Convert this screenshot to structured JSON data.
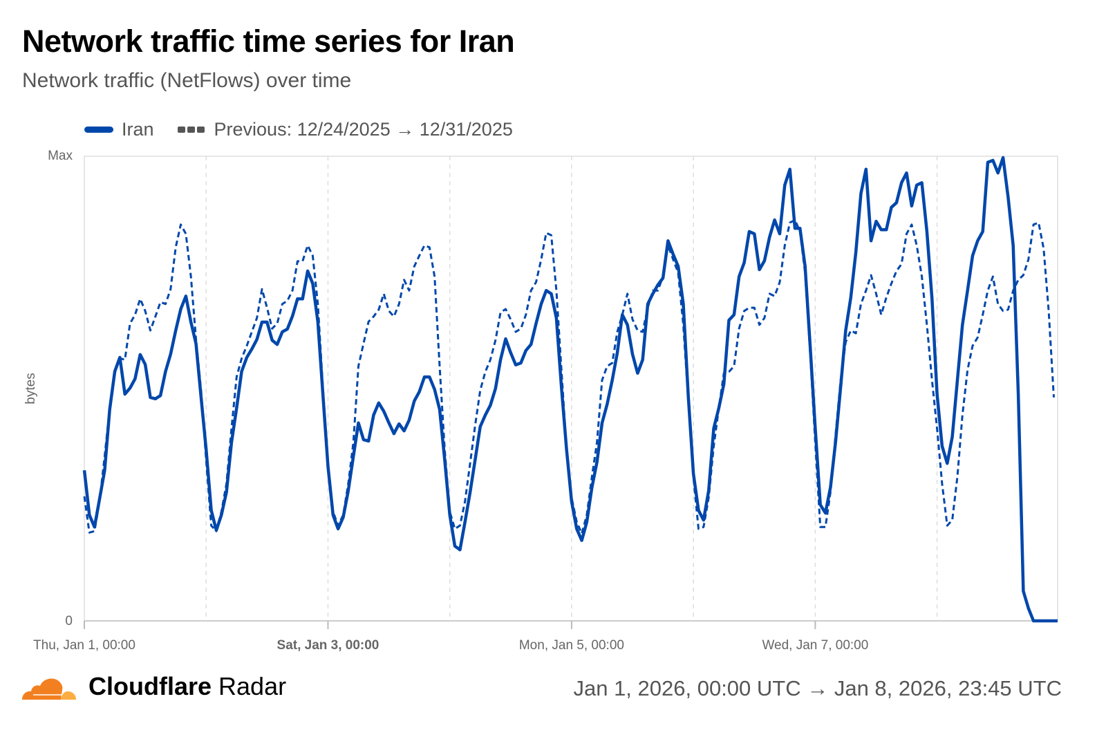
{
  "header": {
    "title": "Network traffic time series for Iran",
    "subtitle": "Network traffic (NetFlows) over time"
  },
  "footer": {
    "brand_bold": "Cloudflare",
    "brand_light": "Radar",
    "date_range": "Jan 1, 2026, 00:00 UTC → Jan 8, 2026, 23:45 UTC"
  },
  "colors": {
    "series": "#0047AB",
    "legend_previous": "#555555",
    "logo_orange": "#F38020",
    "logo_light": "#FBAD41"
  },
  "chart_data": {
    "type": "line",
    "title": "Network traffic time series for Iran",
    "ylabel": "bytes",
    "y_ticks": [
      "0",
      "Max"
    ],
    "ylim": [
      0,
      1
    ],
    "y_unit_note": "fraction of Max",
    "x_range": [
      "2026-01-01T00:00Z",
      "2026-01-08T23:45Z"
    ],
    "x_interval": "1h",
    "x_ticks": [
      "Thu, Jan 1, 00:00",
      "Sat, Jan 3, 00:00",
      "Mon, Jan 5, 00:00",
      "Wed, Jan 7, 00:00"
    ],
    "x_tick_bold_index": 1,
    "grid": "vertical dashed daily",
    "legend": "top-left",
    "series": [
      {
        "name": "Iran",
        "style": "solid",
        "values": [
          0.324,
          0.228,
          0.202,
          0.262,
          0.324,
          0.455,
          0.537,
          0.567,
          0.488,
          0.501,
          0.521,
          0.573,
          0.552,
          0.481,
          0.478,
          0.485,
          0.537,
          0.574,
          0.625,
          0.671,
          0.699,
          0.643,
          0.597,
          0.481,
          0.369,
          0.238,
          0.195,
          0.228,
          0.277,
          0.384,
          0.458,
          0.537,
          0.567,
          0.585,
          0.606,
          0.643,
          0.643,
          0.604,
          0.595,
          0.622,
          0.628,
          0.656,
          0.693,
          0.693,
          0.753,
          0.726,
          0.644,
          0.488,
          0.332,
          0.228,
          0.198,
          0.223,
          0.28,
          0.354,
          0.426,
          0.39,
          0.387,
          0.443,
          0.469,
          0.451,
          0.426,
          0.403,
          0.424,
          0.409,
          0.432,
          0.473,
          0.493,
          0.525,
          0.525,
          0.498,
          0.455,
          0.347,
          0.228,
          0.161,
          0.153,
          0.213,
          0.277,
          0.347,
          0.418,
          0.443,
          0.464,
          0.5,
          0.562,
          0.607,
          0.577,
          0.551,
          0.555,
          0.582,
          0.595,
          0.64,
          0.682,
          0.711,
          0.704,
          0.652,
          0.503,
          0.369,
          0.257,
          0.198,
          0.173,
          0.213,
          0.287,
          0.342,
          0.426,
          0.466,
          0.518,
          0.577,
          0.659,
          0.637,
          0.574,
          0.533,
          0.562,
          0.682,
          0.704,
          0.723,
          0.738,
          0.818,
          0.789,
          0.763,
          0.682,
          0.481,
          0.317,
          0.238,
          0.217,
          0.28,
          0.414,
          0.458,
          0.51,
          0.647,
          0.659,
          0.741,
          0.771,
          0.838,
          0.833,
          0.756,
          0.775,
          0.826,
          0.863,
          0.833,
          0.938,
          0.972,
          0.845,
          0.845,
          0.763,
          0.592,
          0.414,
          0.25,
          0.232,
          0.287,
          0.384,
          0.503,
          0.625,
          0.696,
          0.793,
          0.92,
          0.972,
          0.818,
          0.86,
          0.842,
          0.842,
          0.89,
          0.9,
          0.943,
          0.964,
          0.893,
          0.938,
          0.943,
          0.838,
          0.693,
          0.488,
          0.376,
          0.339,
          0.396,
          0.518,
          0.637,
          0.711,
          0.786,
          0.818,
          0.838,
          0.987,
          0.991,
          0.964,
          0.997,
          0.912,
          0.808,
          0.488,
          0.064,
          0.027,
          0,
          0,
          0,
          0,
          0
        ]
      },
      {
        "name": "Previous: 12/24/2025 → 12/31/2025",
        "style": "dashed",
        "values": [
          0.268,
          0.19,
          0.193,
          0.257,
          0.354,
          0.458,
          0.533,
          0.565,
          0.562,
          0.64,
          0.659,
          0.693,
          0.667,
          0.625,
          0.655,
          0.686,
          0.682,
          0.714,
          0.804,
          0.853,
          0.833,
          0.741,
          0.607,
          0.496,
          0.347,
          0.205,
          0.193,
          0.235,
          0.295,
          0.414,
          0.525,
          0.565,
          0.592,
          0.622,
          0.652,
          0.714,
          0.674,
          0.629,
          0.64,
          0.682,
          0.689,
          0.711,
          0.774,
          0.774,
          0.808,
          0.786,
          0.682,
          0.503,
          0.339,
          0.235,
          0.205,
          0.228,
          0.295,
          0.384,
          0.548,
          0.597,
          0.644,
          0.655,
          0.67,
          0.704,
          0.667,
          0.655,
          0.682,
          0.734,
          0.711,
          0.763,
          0.786,
          0.808,
          0.804,
          0.741,
          0.548,
          0.369,
          0.235,
          0.198,
          0.205,
          0.257,
          0.339,
          0.421,
          0.496,
          0.536,
          0.562,
          0.604,
          0.664,
          0.671,
          0.649,
          0.622,
          0.629,
          0.659,
          0.711,
          0.729,
          0.778,
          0.835,
          0.83,
          0.711,
          0.54,
          0.369,
          0.265,
          0.213,
          0.188,
          0.228,
          0.31,
          0.384,
          0.518,
          0.548,
          0.555,
          0.622,
          0.659,
          0.704,
          0.649,
          0.625,
          0.622,
          0.674,
          0.711,
          0.711,
          0.741,
          0.808,
          0.778,
          0.749,
          0.637,
          0.473,
          0.31,
          0.198,
          0.202,
          0.265,
          0.376,
          0.458,
          0.533,
          0.536,
          0.548,
          0.629,
          0.667,
          0.674,
          0.674,
          0.637,
          0.652,
          0.704,
          0.699,
          0.729,
          0.808,
          0.857,
          0.863,
          0.838,
          0.749,
          0.577,
          0.384,
          0.202,
          0.202,
          0.277,
          0.399,
          0.518,
          0.6,
          0.625,
          0.619,
          0.682,
          0.711,
          0.744,
          0.704,
          0.659,
          0.696,
          0.726,
          0.753,
          0.768,
          0.833,
          0.853,
          0.808,
          0.741,
          0.637,
          0.518,
          0.414,
          0.295,
          0.205,
          0.217,
          0.31,
          0.443,
          0.54,
          0.592,
          0.61,
          0.659,
          0.711,
          0.741,
          0.682,
          0.667,
          0.67,
          0.711,
          0.734,
          0.744,
          0.778,
          0.853,
          0.857,
          0.801,
          0.667,
          0.481
        ]
      }
    ]
  }
}
